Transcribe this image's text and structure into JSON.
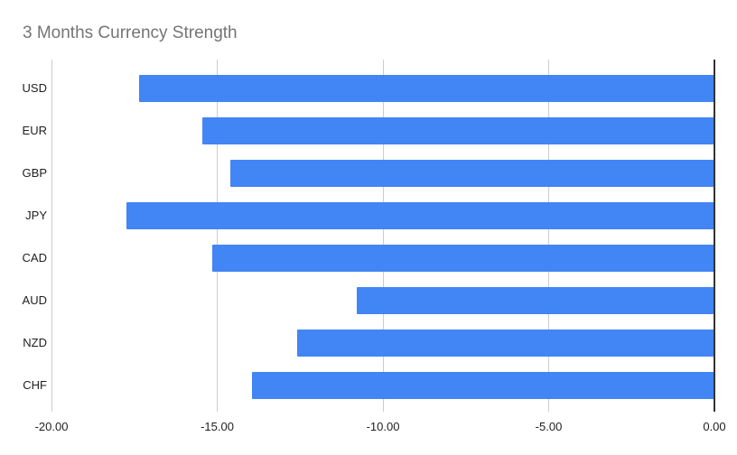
{
  "chart_data": {
    "type": "bar",
    "orientation": "horizontal",
    "title": "3 Months Currency Strength",
    "categories": [
      "USD",
      "EUR",
      "GBP",
      "JPY",
      "CAD",
      "AUD",
      "NZD",
      "CHF"
    ],
    "values": [
      -17.35,
      -15.45,
      -14.6,
      -17.75,
      -15.15,
      -10.8,
      -12.6,
      -13.95
    ],
    "xlabel": "",
    "ylabel": "",
    "xlim": [
      -20,
      0
    ],
    "x_tick_values": [
      -20,
      -15,
      -10,
      -5,
      0
    ],
    "x_tick_labels": [
      "-20.00",
      "-15.00",
      "-10.00",
      "-5.00",
      "0.00"
    ],
    "grid": "vertical-only",
    "legend": "none",
    "colors": {
      "background": "#ffffff",
      "bar": "#4285f4",
      "gridline": "#cccccc",
      "zero_axis": "#333333",
      "title_text": "#757575",
      "tick_text": "#1f1f1f"
    }
  }
}
